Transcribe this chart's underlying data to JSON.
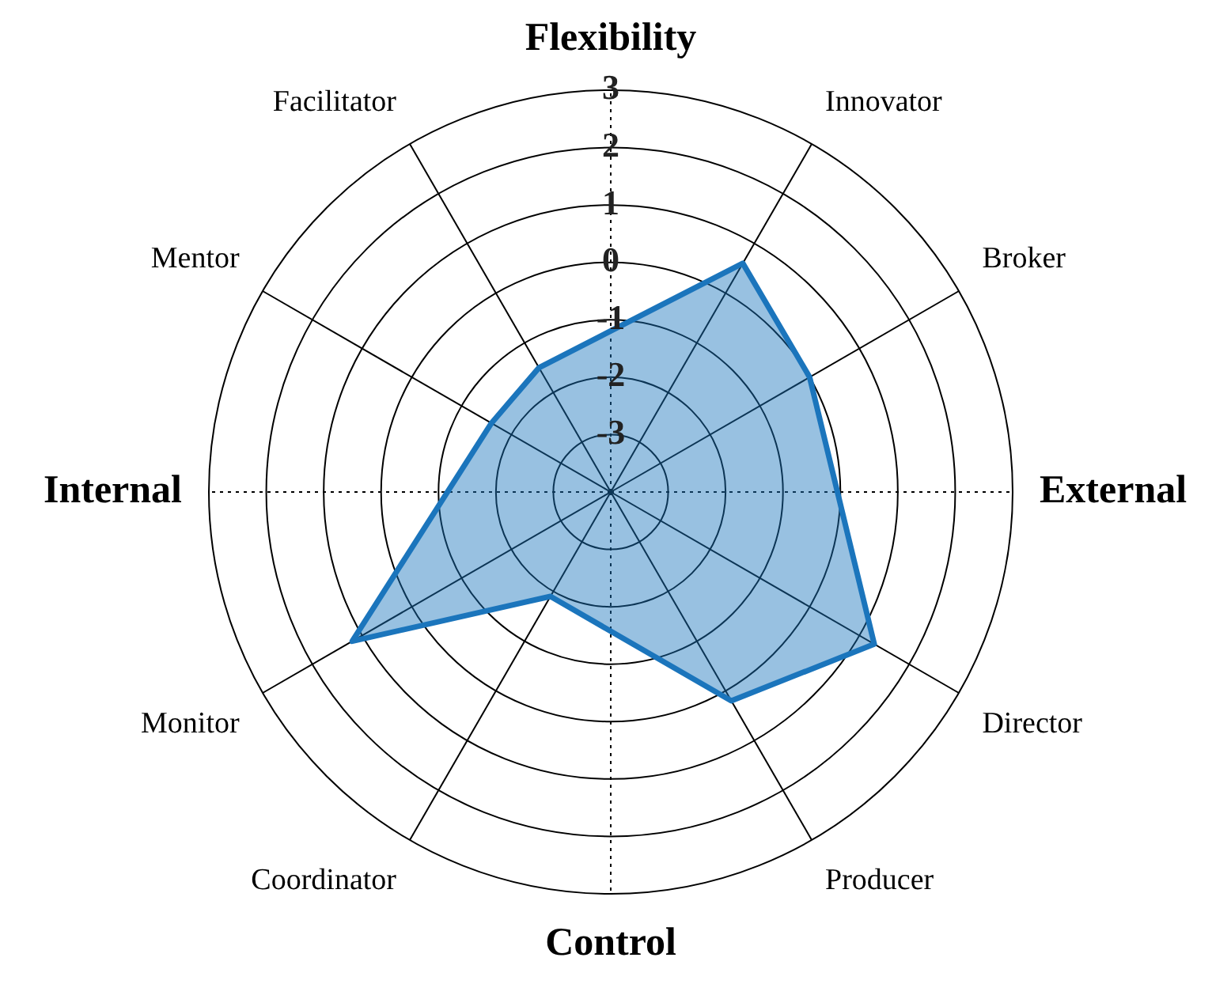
{
  "chart_data": {
    "type": "radar",
    "categories": [
      "Flexibility",
      "Innovator",
      "Broker",
      "External",
      "Director",
      "Producer",
      "Control",
      "Coordinator",
      "Monitor",
      "Internal",
      "Mentor",
      "Facilitator"
    ],
    "series": [
      {
        "color": "#1b75bc",
        "values": [
          null,
          0.6,
          0.0,
          null,
          1.3,
          0.2,
          null,
          -1.9,
          1.2,
          null,
          -1.6,
          -1.5
        ]
      }
    ],
    "ylim": [
      -4,
      3
    ],
    "yticks": [
      -3,
      -2,
      -1,
      0,
      1,
      2,
      3
    ],
    "marker": "none",
    "legend": false
  }
}
